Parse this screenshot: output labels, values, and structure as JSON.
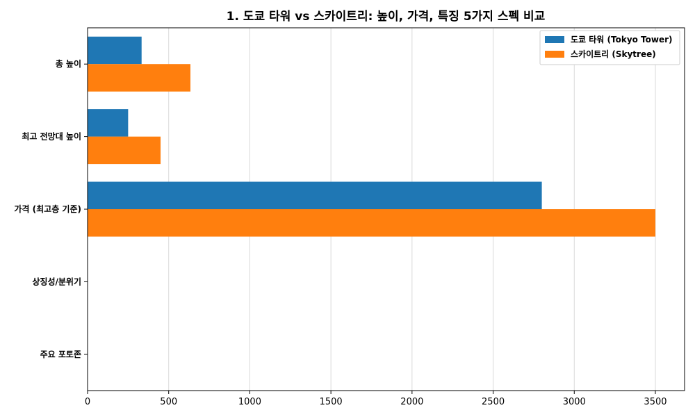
{
  "chart_data": {
    "type": "bar",
    "orientation": "horizontal",
    "title": "1. 도쿄 타워 vs 스카이트리: 높이, 가격, 특징 5가지 스펙 비교",
    "xlabel": "",
    "ylabel": "",
    "categories": [
      "총 높이",
      "최고 전망대 높이",
      "가격 (최고층 기준)",
      "상징성/분위기",
      "주요 포토존"
    ],
    "series": [
      {
        "name": "도쿄 타워 (Tokyo Tower)",
        "color": "#1f77b4",
        "values": [
          333,
          250,
          2800,
          0,
          0
        ]
      },
      {
        "name": "스카이트리 (Skytree)",
        "color": "#ff7f0e",
        "values": [
          634,
          450,
          3500,
          0,
          0
        ]
      }
    ],
    "xlim": [
      0,
      3680
    ],
    "xticks": [
      0,
      500,
      1000,
      1500,
      2000,
      2500,
      3000,
      3500
    ],
    "grid": "vertical",
    "legend_position": "top-right"
  }
}
